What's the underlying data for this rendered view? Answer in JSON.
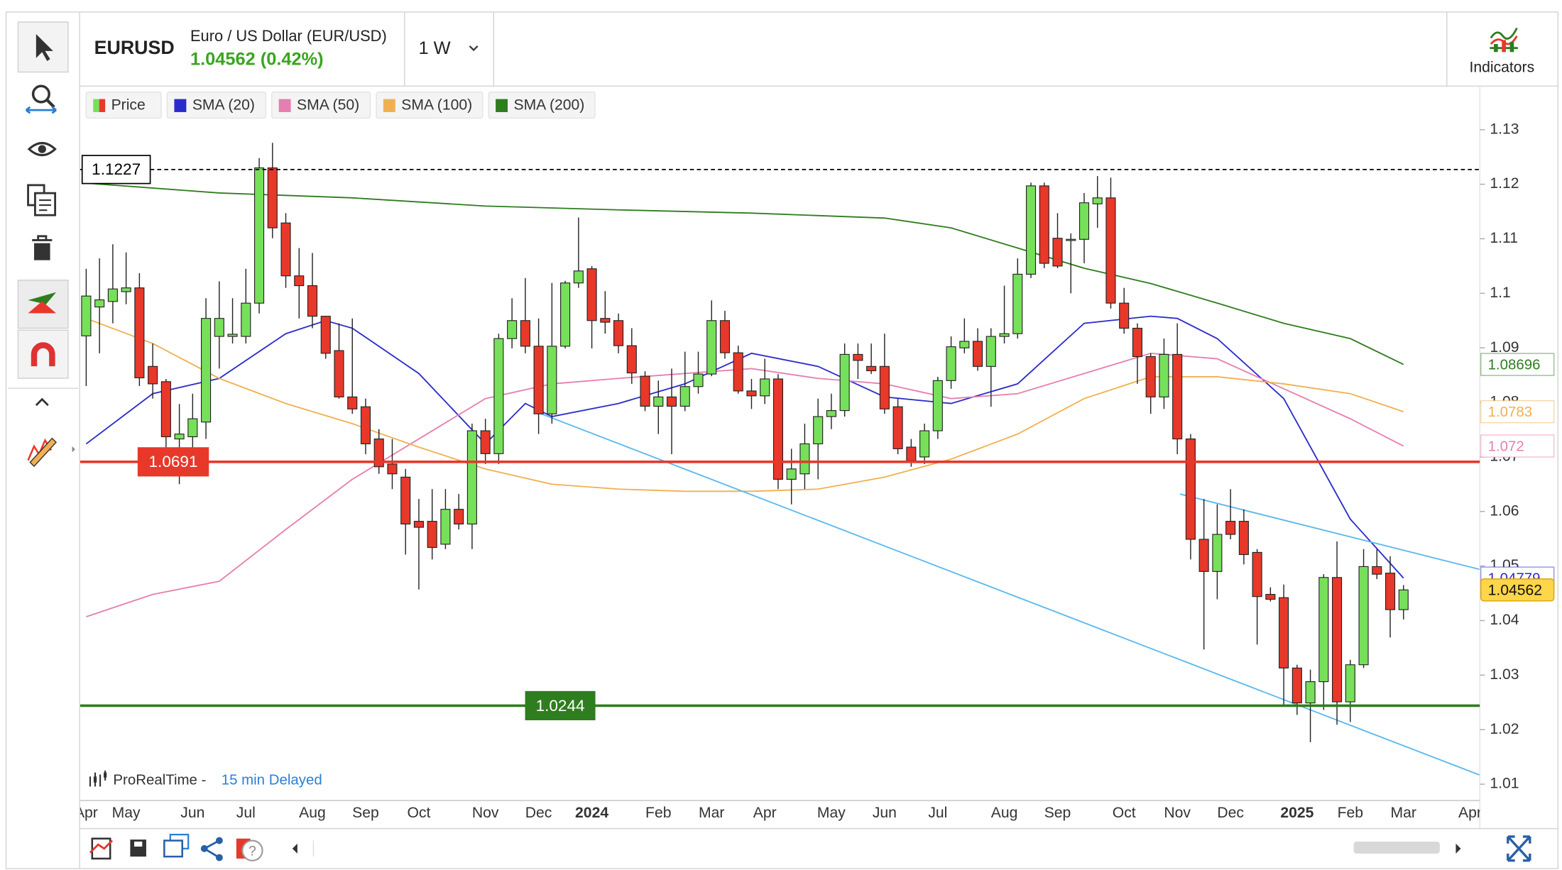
{
  "header": {
    "symbol": "EURUSD",
    "name": "Euro / US Dollar (EUR/USD)",
    "quote": "1.04562 (0.42%)",
    "interval": "1 W",
    "indicators": "Indicators"
  },
  "footer": {
    "source": "ProRealTime -",
    "delay": "15 min Delayed"
  },
  "chart_data": {
    "type": "candlestick",
    "name": "Price",
    "categories": [
      "Apr",
      null,
      null,
      "May",
      null,
      null,
      null,
      null,
      "Jun",
      null,
      null,
      null,
      "Jul",
      null,
      null,
      null,
      null,
      "Aug",
      null,
      null,
      null,
      "Sep",
      null,
      null,
      null,
      "Oct",
      null,
      null,
      null,
      null,
      "Nov",
      null,
      null,
      null,
      "Dec",
      null,
      null,
      null,
      "2024",
      null,
      null,
      null,
      null,
      "Feb",
      null,
      null,
      null,
      "Mar",
      null,
      null,
      null,
      "Apr",
      null,
      null,
      null,
      null,
      "May",
      null,
      null,
      null,
      "Jun",
      null,
      null,
      null,
      "Jul",
      null,
      null,
      null,
      null,
      "Aug",
      null,
      null,
      null,
      "Sep",
      null,
      null,
      null,
      null,
      "Oct",
      null,
      null,
      null,
      "Nov",
      null,
      null,
      null,
      "Dec",
      null,
      null,
      null,
      null,
      "2025",
      null,
      null,
      null,
      "Feb",
      null,
      null,
      null,
      "Mar",
      null,
      null,
      null,
      null,
      "Apr"
    ],
    "open": [
      1.0922,
      1.0975,
      1.0985,
      1.1003,
      1.101,
      1.0866,
      1.0838,
      1.0733,
      1.0737,
      1.0764,
      1.0921,
      1.0921,
      1.0921,
      1.0982,
      1.123,
      1.1129,
      1.1032,
      1.1014,
      1.0958,
      1.0895,
      1.081,
      1.0792,
      1.0733,
      1.0687,
      1.0663,
      1.0582,
      1.0582,
      1.054,
      1.0604,
      1.0577,
      1.0748,
      1.0706,
      1.0917,
      1.095,
      1.0903,
      1.0779,
      1.0903,
      1.1019,
      1.1045,
      1.0954,
      1.095,
      1.0904,
      1.0848,
      1.0793,
      1.081,
      1.0793,
      1.0829,
      1.0852,
      1.095,
      1.0891,
      1.0821,
      1.0812,
      1.0843,
      1.0659,
      1.0669,
      1.0724,
      1.0774,
      1.0785,
      1.0888,
      1.0866,
      1.0866,
      1.0792,
      1.0718,
      1.07,
      1.0748,
      1.084,
      1.09,
      1.0912,
      1.0866,
      1.0921,
      1.0926,
      1.1035,
      1.1197,
      1.1101,
      1.1097,
      1.1099,
      1.1164,
      1.1175,
      1.0982,
      1.0936,
      1.0884,
      1.081,
      1.0888,
      1.0733,
      1.0549,
      1.049,
      1.0582,
      1.0582,
      1.0525,
      1.0448,
      1.0442,
      1.0313,
      1.0249,
      1.0288,
      1.0479,
      1.0251,
      1.0319,
      1.0499,
      1.0487,
      1.042,
      null,
      null,
      null,
      null,
      null
    ],
    "high": [
      1.1045,
      1.1064,
      1.109,
      1.1075,
      1.1037,
      1.0908,
      1.0843,
      1.0797,
      1.0816,
      1.0991,
      1.1022,
      1.0991,
      1.1045,
      1.1248,
      1.1276,
      1.1147,
      1.1083,
      1.1074,
      1.0958,
      1.0945,
      1.0954,
      1.0807,
      1.0751,
      1.0733,
      1.0678,
      1.0623,
      1.0641,
      1.0641,
      1.0632,
      1.0761,
      1.077,
      1.0926,
      1.0991,
      1.1028,
      1.0954,
      1.1019,
      1.1023,
      1.1139,
      1.105,
      1.1004,
      1.0963,
      1.0936,
      1.0857,
      1.084,
      1.0862,
      1.0893,
      1.0893,
      1.0987,
      1.0968,
      1.0904,
      1.0843,
      1.088,
      1.0852,
      1.0715,
      1.0761,
      1.0807,
      1.0816,
      1.0908,
      1.0908,
      1.0908,
      1.0926,
      1.0807,
      1.0733,
      1.0761,
      1.0847,
      1.0921,
      1.0954,
      1.0936,
      1.0936,
      1.1014,
      1.1064,
      1.1203,
      1.1203,
      1.1147,
      1.111,
      1.1184,
      1.1215,
      1.1212,
      1.101,
      1.0945,
      1.089,
      1.0917,
      1.0945,
      1.0742,
      1.0623,
      1.0613,
      1.0641,
      1.0604,
      1.0531,
      1.0461,
      1.0466,
      1.0319,
      1.031,
      1.0485,
      1.0545,
      1.0328,
      1.0531,
      1.0531,
      1.0518,
      1.0465,
      null,
      null,
      null,
      null,
      null
    ],
    "low": [
      1.083,
      1.089,
      1.0945,
      1.098,
      1.083,
      1.0807,
      1.0705,
      1.065,
      1.0705,
      1.0733,
      1.0862,
      1.0908,
      1.0908,
      1.0963,
      1.1101,
      1.101,
      1.0954,
      1.0936,
      1.088,
      1.0807,
      1.0779,
      1.0705,
      1.0669,
      1.0641,
      1.0521,
      1.0457,
      1.0512,
      1.0531,
      1.0567,
      1.0531,
      1.0687,
      1.0687,
      1.0899,
      1.089,
      1.0742,
      1.0761,
      1.0899,
      1.101,
      1.0899,
      1.0926,
      1.089,
      1.0834,
      1.0784,
      1.0742,
      1.0705,
      1.0784,
      1.0816,
      1.0848,
      1.088,
      1.0816,
      1.0788,
      1.0797,
      1.0641,
      1.0613,
      1.0641,
      1.0659,
      1.0751,
      1.0774,
      1.0843,
      1.0852,
      1.0779,
      1.0705,
      1.0682,
      1.0687,
      1.0733,
      1.0825,
      1.089,
      1.0858,
      1.0792,
      1.0908,
      1.0917,
      1.1028,
      1.1046,
      1.1046,
      1.1,
      1.1055,
      1.112,
      1.0972,
      1.0926,
      1.0834,
      1.0779,
      1.0788,
      1.0705,
      1.0512,
      1.0347,
      1.0439,
      1.0549,
      1.0503,
      1.0356,
      1.0435,
      1.0245,
      1.0227,
      1.0177,
      1.0236,
      1.0209,
      1.0214,
      1.0313,
      1.0476,
      1.0369,
      1.0402,
      null,
      null,
      null,
      null,
      null
    ],
    "close": [
      1.0995,
      1.0988,
      1.1008,
      1.101,
      1.0845,
      1.0834,
      1.0737,
      1.0742,
      1.077,
      1.0954,
      1.0954,
      1.0925,
      1.0982,
      1.123,
      1.112,
      1.1032,
      1.1014,
      1.0958,
      1.089,
      1.081,
      1.0788,
      1.0724,
      1.0682,
      1.0669,
      1.0577,
      1.0571,
      1.0534,
      1.0604,
      1.0577,
      1.0748,
      1.0706,
      1.0917,
      1.095,
      1.0903,
      1.0779,
      1.0903,
      1.1019,
      1.1041,
      1.095,
      1.0947,
      1.0904,
      1.0854,
      1.0793,
      1.081,
      1.0793,
      1.0829,
      1.0852,
      1.095,
      1.0891,
      1.0821,
      1.0812,
      1.0843,
      1.0659,
      1.0678,
      1.0724,
      1.0774,
      1.0785,
      1.0888,
      1.0877,
      1.0858,
      1.0788,
      1.0715,
      1.0693,
      1.0748,
      1.084,
      1.0902,
      1.0912,
      1.0866,
      1.0921,
      1.0926,
      1.1035,
      1.1197,
      1.1055,
      1.105,
      1.1099,
      1.1166,
      1.1175,
      1.0982,
      1.0936,
      1.0884,
      1.081,
      1.0888,
      1.0733,
      1.0549,
      1.049,
      1.0558,
      1.0558,
      1.0521,
      1.0444,
      1.0439,
      1.0313,
      1.0249,
      1.0288,
      1.0479,
      1.0251,
      1.0319,
      1.0499,
      1.0485,
      1.042,
      1.04562,
      null,
      null,
      null,
      null,
      null
    ],
    "up_color": "#77e05a",
    "down_color": "#e8382a",
    "series": [
      {
        "name": "SMA (20)",
        "color": "#2b2bcc",
        "x": [
          0,
          5,
          10,
          15,
          18,
          20,
          25,
          30,
          33,
          35,
          40,
          45,
          50,
          55,
          60,
          65,
          70,
          75,
          80,
          82,
          85,
          90,
          95,
          99
        ],
        "values": [
          1.0724,
          1.0816,
          1.0844,
          1.0926,
          1.095,
          1.0936,
          1.0853,
          1.0724,
          1.0798,
          1.0774,
          1.0798,
          1.0834,
          1.089,
          1.0866,
          1.081,
          1.0798,
          1.0834,
          1.0945,
          1.0958,
          1.0954,
          1.0917,
          1.0807,
          1.0586,
          1.04779
        ]
      },
      {
        "name": "SMA (50)",
        "color": "#e57fb0",
        "x": [
          0,
          5,
          10,
          15,
          20,
          25,
          30,
          35,
          40,
          45,
          50,
          55,
          60,
          65,
          70,
          75,
          80,
          85,
          90,
          95,
          99
        ],
        "values": [
          1.0407,
          1.0448,
          1.0472,
          1.0567,
          1.0659,
          1.0733,
          1.0807,
          1.0834,
          1.0844,
          1.0853,
          1.0862,
          1.0844,
          1.0834,
          1.0807,
          1.0816,
          1.0853,
          1.089,
          1.088,
          1.0825,
          1.077,
          1.072
        ]
      },
      {
        "name": "SMA (100)",
        "color": "#f0b050",
        "x": [
          0,
          5,
          10,
          15,
          20,
          25,
          30,
          35,
          40,
          45,
          50,
          55,
          60,
          65,
          70,
          75,
          80,
          85,
          90,
          95,
          99
        ],
        "values": [
          1.0954,
          1.0908,
          1.0844,
          1.0798,
          1.0761,
          1.0718,
          1.0678,
          1.065,
          1.0641,
          1.0637,
          1.0637,
          1.0641,
          1.0663,
          1.0696,
          1.0742,
          1.0807,
          1.0847,
          1.0847,
          1.0834,
          1.0816,
          1.0783
        ]
      },
      {
        "name": "SMA (200)",
        "color": "#2e7d1e",
        "x": [
          0,
          10,
          20,
          30,
          40,
          50,
          60,
          65,
          70,
          75,
          80,
          85,
          90,
          95,
          99
        ],
        "values": [
          1.1202,
          1.1184,
          1.1175,
          1.116,
          1.1153,
          1.1147,
          1.1138,
          1.112,
          1.1083,
          1.1046,
          1.1018,
          1.0982,
          1.0945,
          1.0917,
          1.08696
        ]
      }
    ],
    "trendlines": [
      {
        "color": "#5ab9ee",
        "x": [
          34.2,
          104.7
        ],
        "values": [
          1.0779,
          1.0117
        ]
      },
      {
        "color": "#5ab9ee",
        "x": [
          82.2,
          104.7
        ],
        "values": [
          1.0632,
          1.0494
        ]
      }
    ],
    "levels": [
      {
        "value": 1.1227,
        "color": "#000000",
        "dashed": true
      },
      {
        "value": 1.0691,
        "color": "#e8382a",
        "dashed": false
      },
      {
        "value": 1.0244,
        "color": "#2e7d1e",
        "dashed": false
      }
    ],
    "ylim": [
      1.007,
      1.138
    ],
    "yticks": [
      1.13,
      1.12,
      1.11,
      1.1,
      1.09,
      1.08,
      1.07,
      1.06,
      1.05,
      1.04,
      1.03,
      1.02,
      1.01
    ],
    "grid": false
  }
}
